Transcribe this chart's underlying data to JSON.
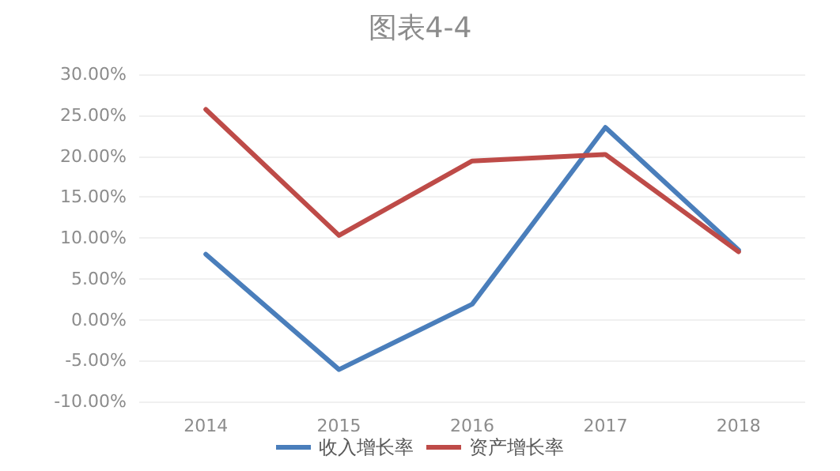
{
  "chart_data": {
    "type": "line",
    "title": "图表4-4",
    "categories": [
      "2014",
      "2015",
      "2016",
      "2017",
      "2018"
    ],
    "series": [
      {
        "name": "收入增长率",
        "color": "#4a7ebb",
        "values": [
          8.0,
          -6.1,
          1.9,
          23.5,
          8.5
        ]
      },
      {
        "name": "资产增长率",
        "color": "#be4b48",
        "values": [
          25.7,
          10.3,
          19.4,
          20.2,
          8.3
        ]
      }
    ],
    "ylim": [
      -10,
      30
    ],
    "yticks": [
      {
        "value": -10,
        "label": "-10.00%"
      },
      {
        "value": -5,
        "label": "-5.00%"
      },
      {
        "value": 0,
        "label": "0.00%"
      },
      {
        "value": 5,
        "label": "5.00%"
      },
      {
        "value": 10,
        "label": "10.00%"
      },
      {
        "value": 15,
        "label": "15.00%"
      },
      {
        "value": 20,
        "label": "20.00%"
      },
      {
        "value": 25,
        "label": "25.00%"
      },
      {
        "value": 30,
        "label": "30.00%"
      }
    ],
    "grid": "y",
    "legend": "bottom",
    "marker": "none",
    "line_style": "solid"
  }
}
